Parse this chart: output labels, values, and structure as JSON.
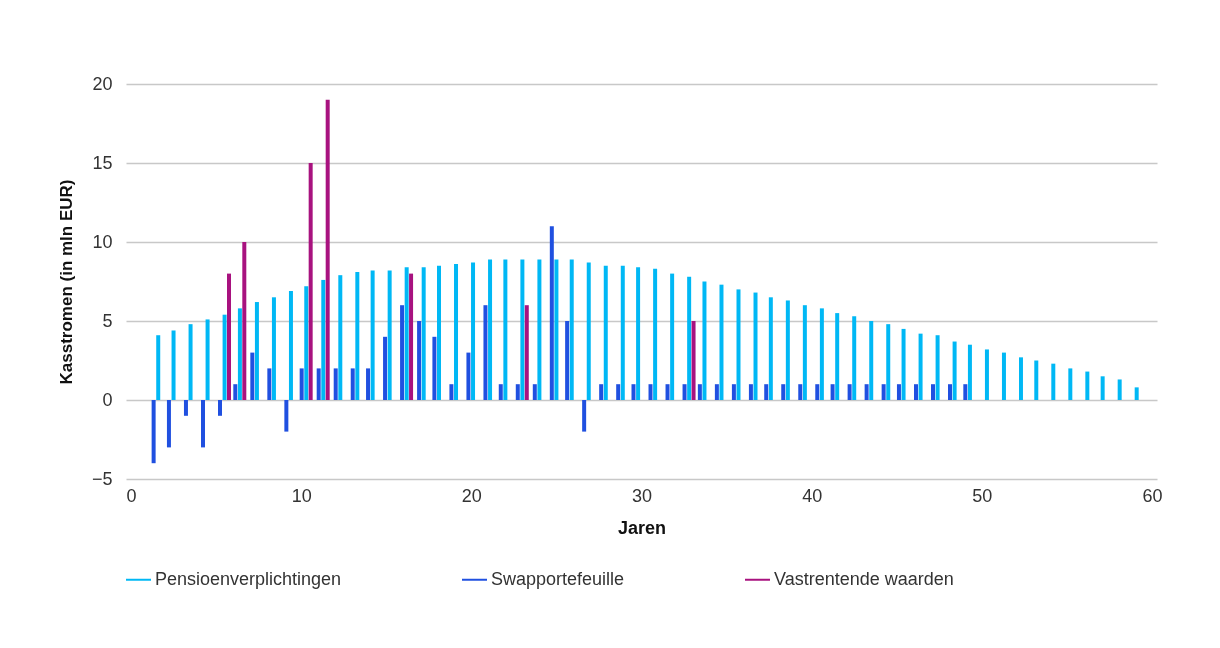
{
  "chart_data": {
    "type": "bar",
    "xlabel": "Jaren",
    "ylabel": "Kasstromen (in mln EUR)",
    "x": [
      1.6,
      2.5,
      3.5,
      4.5,
      5.5,
      6.4,
      7.4,
      8.4,
      9.4,
      10.3,
      11.3,
      12.3,
      13.3,
      14.2,
      15.2,
      16.2,
      17.2,
      18.1,
      19.1,
      20.1,
      21.1,
      22.0,
      23.0,
      24.0,
      25.0,
      25.9,
      26.9,
      27.9,
      28.9,
      29.8,
      30.8,
      31.8,
      32.8,
      33.7,
      34.7,
      35.7,
      36.7,
      37.6,
      38.6,
      39.6,
      40.6,
      41.5,
      42.5,
      43.5,
      44.5,
      45.4,
      46.4,
      47.4,
      48.4,
      49.3,
      50.3,
      51.3,
      52.3,
      53.2,
      54.2,
      55.2,
      56.2,
      57.1,
      58.1,
      59.1
    ],
    "series": [
      {
        "name": "Pensioenverplichtingen",
        "color": "#00b8f5",
        "values": [
          4.1,
          4.4,
          4.8,
          5.1,
          5.4,
          5.8,
          6.2,
          6.5,
          6.9,
          7.2,
          7.6,
          7.9,
          8.1,
          8.2,
          8.2,
          8.4,
          8.4,
          8.5,
          8.6,
          8.7,
          8.9,
          8.9,
          8.9,
          8.9,
          8.9,
          8.9,
          8.7,
          8.5,
          8.5,
          8.4,
          8.3,
          8.0,
          7.8,
          7.5,
          7.3,
          7.0,
          6.8,
          6.5,
          6.3,
          6.0,
          5.8,
          5.5,
          5.3,
          5.0,
          4.8,
          4.5,
          4.2,
          4.1,
          3.7,
          3.5,
          3.2,
          3.0,
          2.7,
          2.5,
          2.3,
          2.0,
          1.8,
          1.5,
          1.3,
          0.8
        ]
      },
      {
        "name": "Swapportefeuille",
        "color": "#2050e0",
        "values": [
          -4,
          -3,
          -1,
          -3,
          -1,
          1,
          3,
          2,
          -2,
          2,
          2,
          2,
          2,
          2,
          4,
          6,
          5,
          4,
          1,
          3,
          6,
          1,
          1,
          1,
          11,
          5,
          -2,
          1,
          1,
          1,
          1,
          1,
          1,
          1,
          1,
          1,
          1,
          1,
          1,
          1,
          1,
          1,
          1,
          1,
          1,
          1,
          1,
          1,
          1,
          1,
          null,
          null,
          null,
          null,
          null,
          null,
          null,
          null,
          null,
          null
        ]
      },
      {
        "name": "Vastrentende waarden",
        "color": "#a8127f",
        "values": [
          null,
          null,
          null,
          null,
          8,
          10,
          null,
          null,
          null,
          15,
          19,
          null,
          null,
          null,
          null,
          8,
          null,
          null,
          null,
          null,
          null,
          null,
          6,
          null,
          null,
          null,
          null,
          null,
          null,
          null,
          null,
          null,
          5,
          null,
          null,
          null,
          null,
          null,
          null,
          null,
          null,
          null,
          null,
          null,
          null,
          null,
          null,
          null,
          null,
          null,
          null,
          null,
          null,
          null,
          null,
          null,
          null,
          null,
          null,
          null
        ]
      }
    ],
    "xlim": [
      0,
      60
    ],
    "xticks": [
      0,
      10,
      20,
      30,
      40,
      50,
      60
    ],
    "ylim": [
      -5,
      20
    ],
    "yticks": [
      -5,
      0,
      5,
      10,
      15,
      20
    ],
    "grid": "y",
    "legend": "bottom"
  }
}
